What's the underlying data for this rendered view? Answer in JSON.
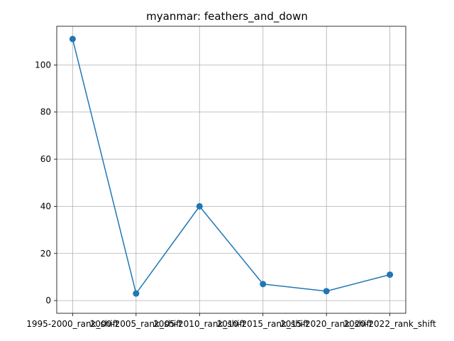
{
  "chart_data": {
    "type": "line",
    "title": "myanmar: feathers_and_down",
    "xlabel": "",
    "ylabel": "",
    "categories": [
      "1995-2000_rank_shift",
      "2000-2005_rank_shift",
      "2005-2010_rank_shift",
      "2010-2015_rank_shift",
      "2015-2020_rank_shift",
      "2020-2022_rank_shift"
    ],
    "series": [
      {
        "values": [
          111,
          3,
          40,
          7,
          4,
          11
        ],
        "color": "#1f77b4"
      }
    ],
    "yticks": [
      0,
      20,
      40,
      60,
      80,
      100
    ],
    "ylim": [
      -5.4,
      116.4
    ],
    "grid": true,
    "marker": "circle"
  }
}
